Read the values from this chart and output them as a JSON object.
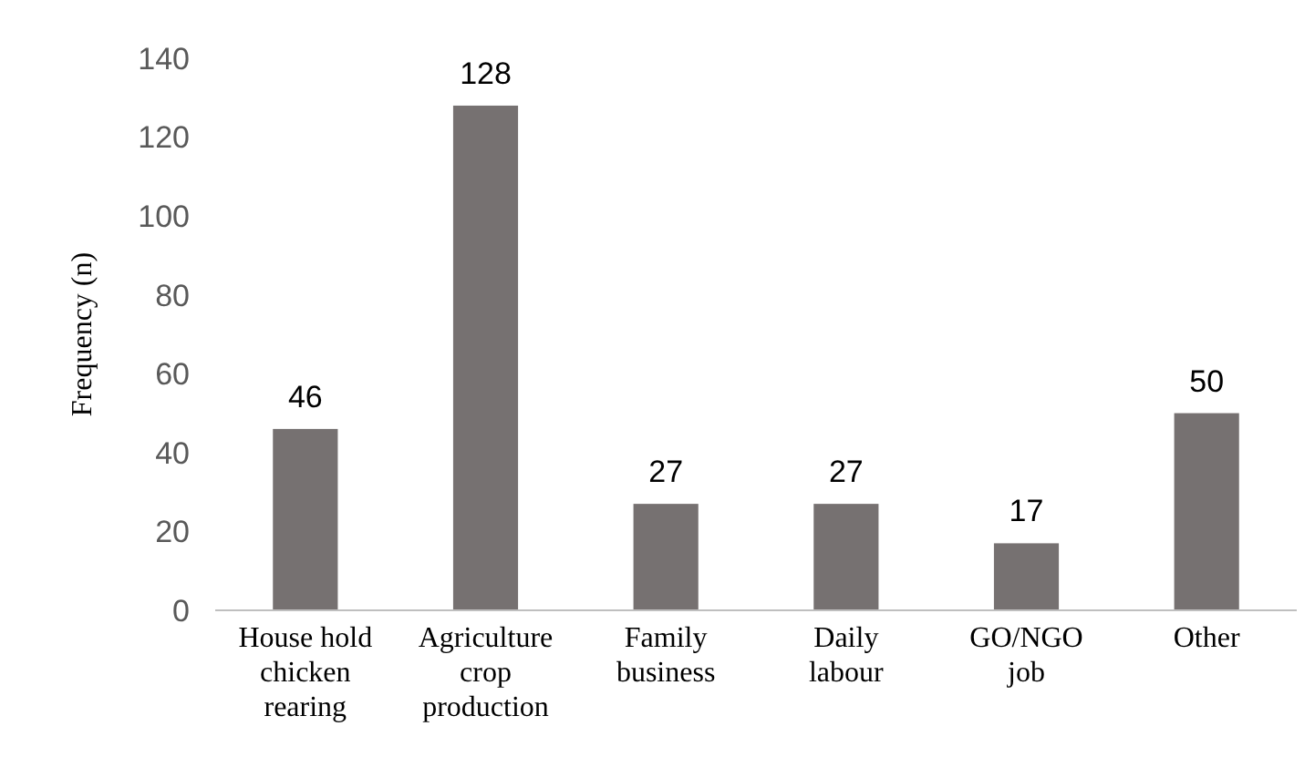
{
  "chart_data": {
    "type": "bar",
    "ylabel": "Frequency (n)",
    "categories": [
      "House hold\nchicken\nrearing",
      "Agriculture\ncrop\nproduction",
      "Family\nbusiness",
      "Daily\nlabour",
      "GO/NGO\njob",
      "Other"
    ],
    "values": [
      46,
      128,
      27,
      27,
      17,
      50
    ],
    "color": "#767171",
    "ylim": [
      0,
      140
    ],
    "yticks": [
      0,
      20,
      40,
      60,
      80,
      100,
      120,
      140
    ],
    "grid": false,
    "data_labels": true
  }
}
